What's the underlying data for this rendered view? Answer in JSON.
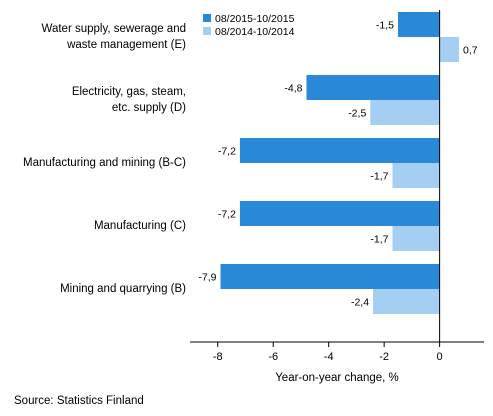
{
  "chart_data": {
    "type": "bar",
    "orientation": "horizontal",
    "categories": [
      [
        "Water supply, sewerage and",
        "waste management (E)"
      ],
      [
        "Electricity, gas, steam,",
        "etc. supply (D)"
      ],
      [
        "Manufacturing and mining (B-C)"
      ],
      [
        "Manufacturing (C)"
      ],
      [
        "Mining and quarrying (B)"
      ]
    ],
    "series": [
      {
        "name": "08/2015-10/2015",
        "color": "#2a88d8",
        "values": [
          -1.5,
          -4.8,
          -7.2,
          -7.2,
          -7.9
        ],
        "labels": [
          "-1,5",
          "-4,8",
          "-7,2",
          "-7,2",
          "-7,9"
        ]
      },
      {
        "name": "08/2014-10/2014",
        "color": "#a4cff2",
        "values": [
          0.7,
          -2.5,
          -1.7,
          -1.7,
          -2.4
        ],
        "labels": [
          "0,7",
          "-2,5",
          "-1,7",
          "-1,7",
          "-2,4"
        ]
      }
    ],
    "xlim": [
      -9,
      1.6
    ],
    "xticks": [
      -8,
      -6,
      -4,
      -2,
      0
    ],
    "xlabel": "Year-on-year change, %",
    "ylabel": "",
    "legend_position": "top-left",
    "grid": false
  },
  "source": "Source: Statistics Finland"
}
